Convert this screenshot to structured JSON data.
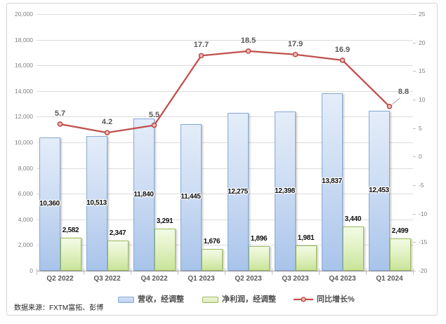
{
  "source": {
    "label": "数据来源：FXTM富拓、彭博"
  },
  "legend": [
    {
      "label": "营收，经调整",
      "swatch_fill": "#bcd0ec",
      "swatch_border": "#85a8d6",
      "type": "bar"
    },
    {
      "label": "净利润，经调整",
      "swatch_fill": "#dcebbd",
      "swatch_border": "#9bbb59",
      "type": "bar"
    },
    {
      "label": "同比增长%",
      "swatch_line": "#c0504d",
      "marker_fill": "#edb8b6",
      "marker_border": "#b5433f",
      "type": "line"
    }
  ],
  "chart_data": {
    "type": "bar",
    "subtype": "grouped-bar-with-line-combo",
    "title": "",
    "xlabel": "",
    "ylabel": "",
    "categories": [
      "Q2 2022",
      "Q3 2022",
      "Q4 2022",
      "Q1 2023",
      "Q2 2023",
      "Q3 2023",
      "Q4 2023",
      "Q1 2024"
    ],
    "series": [
      {
        "name": "营收，经调整",
        "type": "bar",
        "axis": "left",
        "values": [
          10360,
          10513,
          11840,
          11445,
          12275,
          12398,
          13837,
          12453
        ],
        "labels": [
          "10,360",
          "10,513",
          "11,840",
          "11,445",
          "12,275",
          "12,398",
          "13,837",
          "12,453"
        ],
        "label_position": "center"
      },
      {
        "name": "净利润，经调整",
        "type": "bar",
        "axis": "left",
        "values": [
          2582,
          2347,
          3291,
          1676,
          1896,
          1981,
          3440,
          2499
        ],
        "labels": [
          "2,582",
          "2,347",
          "3,291",
          "1,676",
          "1,896",
          "1,981",
          "3,440",
          "2,499"
        ],
        "label_position": "outside-end"
      },
      {
        "name": "同比增长%",
        "type": "line",
        "axis": "right",
        "values": [
          5.7,
          4.2,
          5.5,
          17.7,
          18.5,
          17.9,
          16.9,
          8.8
        ],
        "labels": [
          "5.7",
          "4.2",
          "5.5",
          "17.7",
          "18.5",
          "17.9",
          "16.9",
          "8.8"
        ],
        "color": "#c0504d"
      }
    ],
    "left_axis": {
      "min": 0,
      "max": 20000,
      "step": 2000,
      "ticks": [
        "0",
        "2,000",
        "4,000",
        "6,000",
        "8,000",
        "10,000",
        "12,000",
        "14,000",
        "16,000",
        "18,000",
        "20,000"
      ]
    },
    "right_axis": {
      "min": -20,
      "max": 25,
      "step": 5,
      "ticks": [
        "25",
        "20",
        "15",
        "10",
        "5",
        "0",
        "-5",
        "-10",
        "-15",
        "-20"
      ]
    },
    "grid": true,
    "legend_position": "bottom"
  }
}
